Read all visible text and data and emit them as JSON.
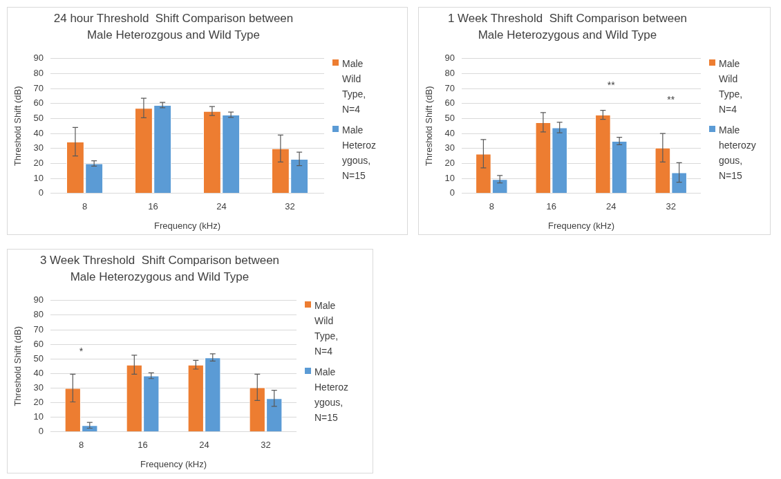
{
  "chart_data": [
    {
      "type": "bar",
      "title": "24 hour Threshold  Shift Comparison between Male Heterozgous and Wild Type",
      "xlabel": "Frequency (kHz)",
      "ylabel": "Threshold Shift (dB)",
      "categories": [
        "8",
        "16",
        "24",
        "32"
      ],
      "ylim": [
        0,
        90
      ],
      "yticks": [
        0,
        10,
        20,
        30,
        40,
        50,
        60,
        70,
        80,
        90
      ],
      "grid": "y",
      "legend": "right",
      "series": [
        {
          "name": "Male Wild Type, N=4",
          "color": "#ed7d31",
          "values": [
            34.5,
            57,
            55,
            30
          ],
          "errors": [
            9.5,
            6.5,
            3,
            9
          ]
        },
        {
          "name": "Male Heterozygous, N=15",
          "color": "#5b9bd5",
          "values": [
            20,
            59,
            52.5,
            23
          ],
          "errors": [
            1.8,
            1.8,
            1.8,
            4.5
          ]
        }
      ]
    },
    {
      "type": "bar",
      "title": "1 Week Threshold  Shift Comparison between Male Heterozygous and Wild Type",
      "xlabel": "Frequency (kHz)",
      "ylabel": "Threshold Shift (dB)",
      "categories": [
        "8",
        "16",
        "24",
        "32"
      ],
      "ylim": [
        0,
        90
      ],
      "yticks": [
        0,
        10,
        20,
        30,
        40,
        50,
        60,
        70,
        80,
        90
      ],
      "grid": "y",
      "legend": "right",
      "annotations": [
        "**",
        "**"
      ],
      "series": [
        {
          "name": "Male Wild Type, N=4",
          "color": "#ed7d31",
          "values": [
            26.5,
            47.5,
            52.5,
            30.5
          ],
          "errors": [
            9.5,
            6.5,
            3,
            9.5
          ]
        },
        {
          "name": "Male heterozygous, N=15",
          "color": "#5b9bd5",
          "values": [
            9.5,
            44,
            35,
            14
          ],
          "errors": [
            2.5,
            3.5,
            2.5,
            6.5
          ]
        }
      ]
    },
    {
      "type": "bar",
      "title": "3 Week Threshold  Shift Comparison between Male Heterozygous and Wild Type",
      "xlabel": "Frequency (kHz)",
      "ylabel": "Threshold Shift (dB)",
      "categories": [
        "8",
        "16",
        "24",
        "32"
      ],
      "ylim": [
        0,
        90
      ],
      "yticks": [
        0,
        10,
        20,
        30,
        40,
        50,
        60,
        70,
        80,
        90
      ],
      "grid": "y",
      "legend": "right",
      "annotations": [
        "*"
      ],
      "series": [
        {
          "name": "Male Wild Type, N=4",
          "color": "#ed7d31",
          "values": [
            30,
            46,
            46,
            30.5
          ],
          "errors": [
            9.5,
            6.5,
            3,
            9
          ]
        },
        {
          "name": "Male Heterozygous, N=15",
          "color": "#5b9bd5",
          "values": [
            4.5,
            38.5,
            51,
            23
          ],
          "errors": [
            2,
            2,
            2.5,
            5.5
          ]
        }
      ]
    }
  ]
}
